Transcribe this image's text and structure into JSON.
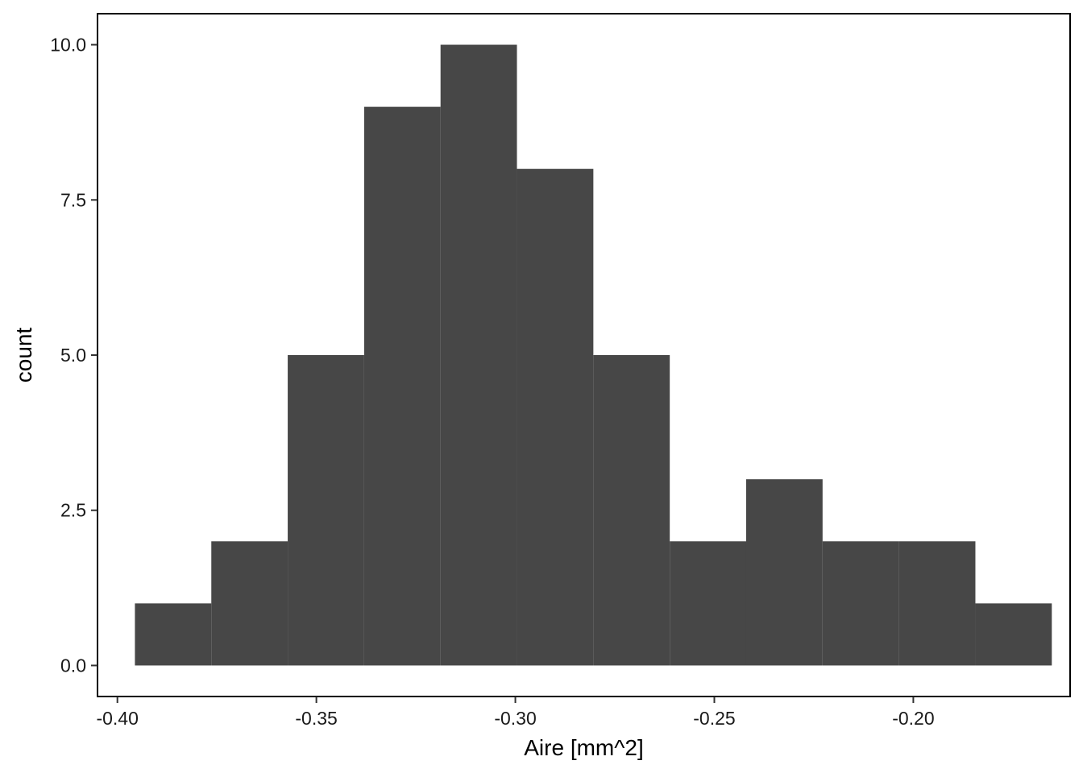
{
  "chart_data": {
    "type": "bar",
    "subtype": "histogram",
    "xlabel": "Aire  [mm^2]",
    "ylabel": "count",
    "bin_edges": [
      -0.3956,
      -0.3764,
      -0.3572,
      -0.338,
      -0.3188,
      -0.2996,
      -0.2804,
      -0.2612,
      -0.242,
      -0.2228,
      -0.2036,
      -0.1844,
      -0.1652
    ],
    "counts": [
      1,
      2,
      5,
      9,
      10,
      8,
      5,
      2,
      3,
      2,
      2,
      1
    ],
    "xlim": [
      -0.405,
      -0.1606
    ],
    "ylim": [
      -0.5,
      10.5
    ],
    "x_ticks": [
      -0.4,
      -0.35,
      -0.3,
      -0.25,
      -0.2
    ],
    "x_tick_labels": [
      "-0.40",
      "-0.35",
      "-0.30",
      "-0.25",
      "-0.20"
    ],
    "y_ticks": [
      0,
      2.5,
      5,
      7.5,
      10
    ],
    "y_tick_labels": [
      "0.0",
      "2.5",
      "5.0",
      "7.5",
      "10.0"
    ],
    "bar_color": "#474747",
    "grid": false,
    "legend": "none"
  }
}
